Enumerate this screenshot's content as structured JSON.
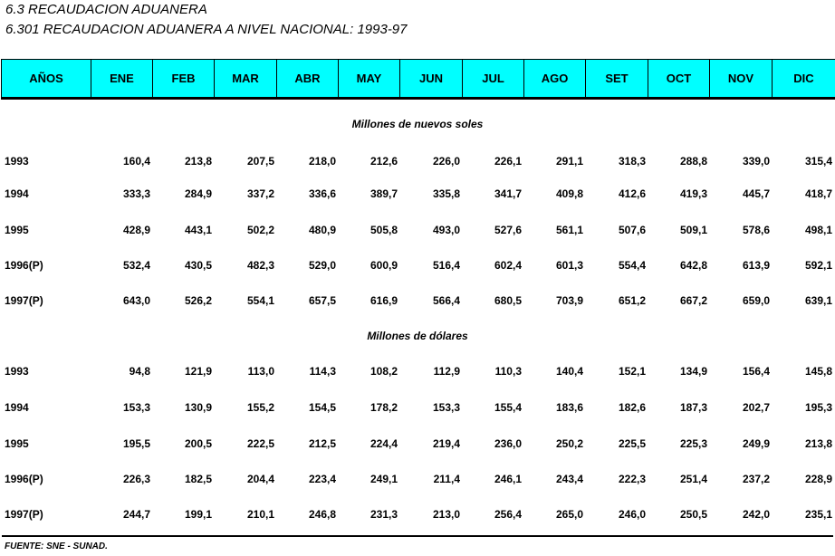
{
  "title": "6.3  RECAUDACION ADUANERA",
  "subtitle": "6.301  RECAUDACION ADUANERA A NIVEL NACIONAL: 1993-97",
  "header_color": "#00ffff",
  "columns": [
    "AÑOS",
    "ENE",
    "FEB",
    "MAR",
    "ABR",
    "MAY",
    "JUN",
    "JUL",
    "AGO",
    "SET",
    "OCT",
    "NOV",
    "DIC"
  ],
  "sections": [
    {
      "label": "Millones de nuevos soles",
      "rows": [
        {
          "year": "1993",
          "values": [
            "160,4",
            "213,8",
            "207,5",
            "218,0",
            "212,6",
            "226,0",
            "226,1",
            "291,1",
            "318,3",
            "288,8",
            "339,0",
            "315,4"
          ]
        },
        {
          "year": "1994",
          "values": [
            "333,3",
            "284,9",
            "337,2",
            "336,6",
            "389,7",
            "335,8",
            "341,7",
            "409,8",
            "412,6",
            "419,3",
            "445,7",
            "418,7"
          ]
        },
        {
          "year": "1995",
          "values": [
            "428,9",
            "443,1",
            "502,2",
            "480,9",
            "505,8",
            "493,0",
            "527,6",
            "561,1",
            "507,6",
            "509,1",
            "578,6",
            "498,1"
          ]
        },
        {
          "year": "1996(P)",
          "values": [
            "532,4",
            "430,5",
            "482,3",
            "529,0",
            "600,9",
            "516,4",
            "602,4",
            "601,3",
            "554,4",
            "642,8",
            "613,9",
            "592,1"
          ]
        },
        {
          "year": "1997(P)",
          "values": [
            "643,0",
            "526,2",
            "554,1",
            "657,5",
            "616,9",
            "566,4",
            "680,5",
            "703,9",
            "651,2",
            "667,2",
            "659,0",
            "639,1"
          ]
        }
      ]
    },
    {
      "label": "Millones de dólares",
      "rows": [
        {
          "year": "1993",
          "values": [
            "94,8",
            "121,9",
            "113,0",
            "114,3",
            "108,2",
            "112,9",
            "110,3",
            "140,4",
            "152,1",
            "134,9",
            "156,4",
            "145,8"
          ]
        },
        {
          "year": "1994",
          "values": [
            "153,3",
            "130,9",
            "155,2",
            "154,5",
            "178,2",
            "153,3",
            "155,4",
            "183,6",
            "182,6",
            "187,3",
            "202,7",
            "195,3"
          ]
        },
        {
          "year": "1995",
          "values": [
            "195,5",
            "200,5",
            "222,5",
            "212,5",
            "224,4",
            "219,4",
            "236,0",
            "250,2",
            "225,5",
            "225,3",
            "249,9",
            "213,8"
          ]
        },
        {
          "year": "1996(P)",
          "values": [
            "226,3",
            "182,5",
            "204,4",
            "223,4",
            "249,1",
            "211,4",
            "246,1",
            "243,4",
            "222,3",
            "251,4",
            "237,2",
            "228,9"
          ]
        },
        {
          "year": "1997(P)",
          "values": [
            "244,7",
            "199,1",
            "210,1",
            "246,8",
            "231,3",
            "213,0",
            "256,4",
            "265,0",
            "246,0",
            "250,5",
            "242,0",
            "235,1"
          ]
        }
      ]
    }
  ],
  "source": "FUENTE:  SNE - SUNAD."
}
